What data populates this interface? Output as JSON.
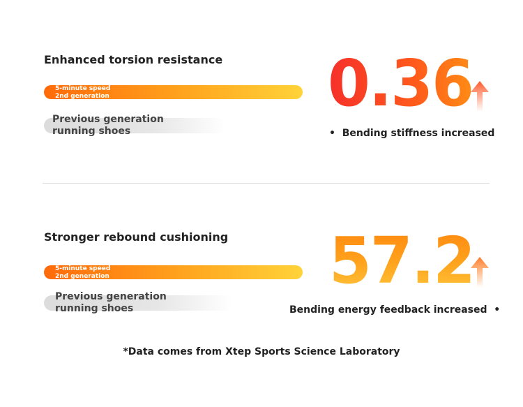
{
  "section1": {
    "title": "Enhanced torsion resistance",
    "new_bar": {
      "line1": "5-minute speed",
      "line2": "2nd generation"
    },
    "old_bar": {
      "line1": "Previous generation",
      "line2": "running shoes"
    },
    "value": "0.36",
    "arrow_icon": "arrow-up-icon",
    "caption": "Bending stiffness increased",
    "bullet": "•"
  },
  "section2": {
    "title": "Stronger rebound cushioning",
    "new_bar": {
      "line1": "5-minute speed",
      "line2": "2nd generation"
    },
    "old_bar": {
      "line1": "Previous generation",
      "line2": "running shoes"
    },
    "value": "57.2",
    "arrow_icon": "arrow-up-icon",
    "caption": "Bending energy feedback increased",
    "bullet": "•"
  },
  "footnote": "*Data comes from Xtep Sports Science Laboratory",
  "colors": {
    "accent_orange": "#ff6a0a",
    "accent_yellow": "#ffd33a",
    "accent_red": "#f5302a"
  }
}
